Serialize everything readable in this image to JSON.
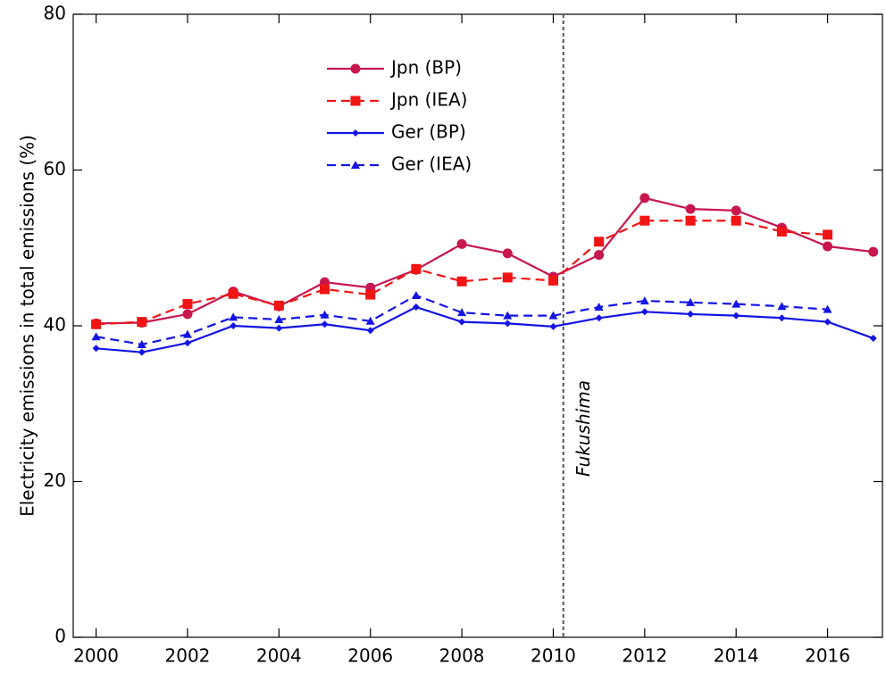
{
  "chart_data": {
    "type": "line",
    "y_label": "Electricity emissions in total emissions (%)",
    "x": [
      2000,
      2001,
      2002,
      2003,
      2004,
      2005,
      2006,
      2007,
      2008,
      2009,
      2010,
      2011,
      2012,
      2013,
      2014,
      2015,
      2016,
      2017
    ],
    "series": [
      {
        "name": "Jpn (BP)",
        "color": "#c8174f",
        "dashed": false,
        "marker": "circle",
        "values": [
          40.3,
          40.4,
          41.5,
          44.4,
          42.5,
          45.6,
          44.9,
          47.2,
          50.5,
          49.3,
          46.3,
          49.1,
          56.4,
          55.0,
          54.8,
          52.6,
          50.2,
          49.5
        ]
      },
      {
        "name": "Jpn (IEA)",
        "color": "#f01414",
        "dashed": true,
        "marker": "square",
        "values": [
          40.2,
          40.5,
          42.8,
          44.1,
          42.6,
          44.7,
          44.0,
          47.3,
          45.7,
          46.2,
          45.8,
          50.8,
          53.5,
          53.5,
          53.5,
          52.1,
          51.7,
          null
        ]
      },
      {
        "name": "Ger (BP)",
        "color": "#1414e6",
        "dashed": false,
        "marker": "diamond",
        "values": [
          37.1,
          36.6,
          37.8,
          40.0,
          39.7,
          40.2,
          39.4,
          42.4,
          40.5,
          40.3,
          39.9,
          41.0,
          41.8,
          41.5,
          41.3,
          41.0,
          40.5,
          38.4
        ]
      },
      {
        "name": "Ger (IEA)",
        "color": "#1414e6",
        "dashed": true,
        "marker": "triangle",
        "values": [
          38.6,
          37.6,
          38.9,
          41.1,
          40.8,
          41.4,
          40.6,
          43.9,
          41.7,
          41.3,
          41.3,
          42.4,
          43.2,
          43.0,
          42.8,
          42.5,
          42.1,
          null
        ]
      }
    ],
    "xlim": [
      1999.5,
      2017.2
    ],
    "xticks": [
      2000,
      2002,
      2004,
      2006,
      2008,
      2010,
      2012,
      2014,
      2016
    ],
    "ylim": [
      0,
      80
    ],
    "yticks": [
      0,
      20,
      40,
      60,
      80
    ],
    "annotation": {
      "text": "Fukushima",
      "x": 2010.22
    },
    "legend": "top-center"
  }
}
